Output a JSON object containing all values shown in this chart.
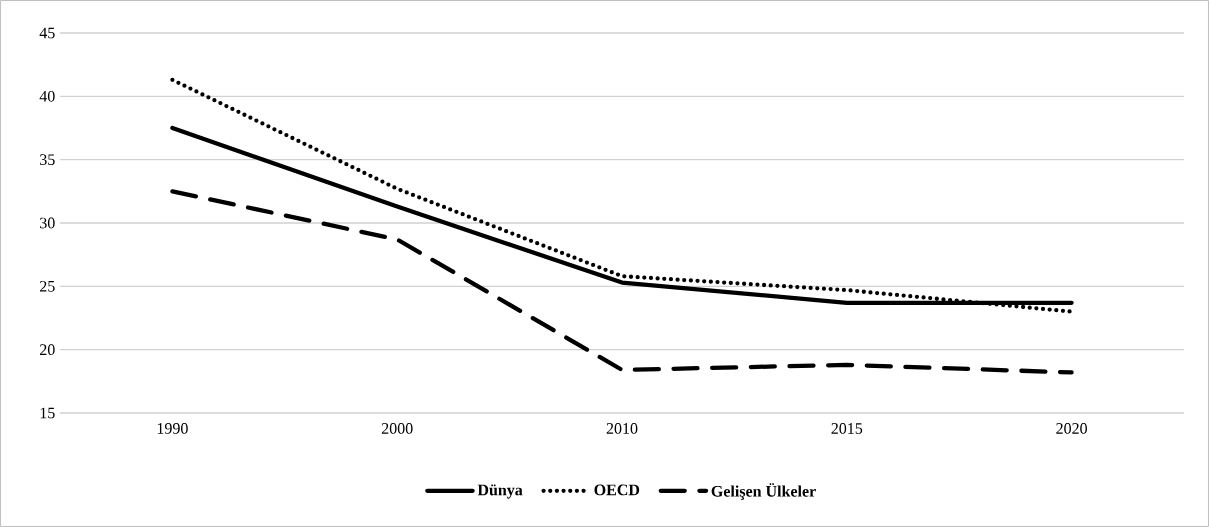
{
  "chart_data": {
    "type": "line",
    "categories": [
      "1990",
      "2000",
      "2010",
      "2015",
      "2020"
    ],
    "series": [
      {
        "name": "Dünya",
        "color": "#000000",
        "line_style": "solid",
        "values": [
          37.5,
          31.3,
          25.3,
          23.7,
          23.7
        ]
      },
      {
        "name": "OECD",
        "color": "#000000",
        "line_style": "dotted",
        "values": [
          41.3,
          32.7,
          25.8,
          24.7,
          23.0
        ]
      },
      {
        "name": "Gelişen Ülkeler",
        "color": "#000000",
        "line_style": "dashed",
        "values": [
          32.5,
          28.7,
          18.4,
          18.8,
          18.2
        ]
      }
    ],
    "ylim": [
      15,
      45
    ],
    "yticks": [
      15,
      20,
      25,
      30,
      35,
      40,
      45
    ],
    "grid": "y",
    "legend": "bottom",
    "marker": "none"
  }
}
